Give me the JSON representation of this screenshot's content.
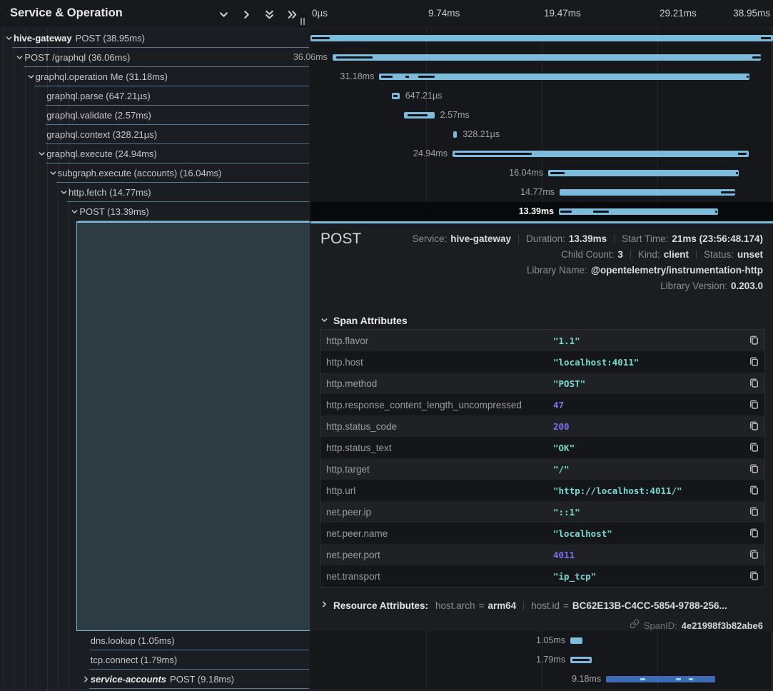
{
  "left_panel": {
    "title": "Service & Operation",
    "header_icons": [
      "chevron-down-icon",
      "chevron-right-icon",
      "chevrons-down-icon",
      "chevrons-right-icon"
    ]
  },
  "timeline": {
    "ticks": [
      "0µs",
      "9.74ms",
      "19.47ms",
      "29.21ms",
      "38.95ms"
    ],
    "total_ms": 38.95,
    "bar_color_light": "#7dbbdc",
    "bar_color_dark": "#3d6cb4"
  },
  "rows": [
    {
      "section": "top",
      "service": "hive-gateway",
      "italic": false,
      "label": "POST (38.95ms)",
      "depth": 0,
      "chevron": "down",
      "start_ms": 0,
      "dur_ms": 38.95,
      "bar_label": "",
      "label_side": "none",
      "color": "light",
      "selected": false,
      "marks": [
        [
          0.1,
          1.5
        ],
        [
          37.9,
          0.85
        ]
      ],
      "end_dot": false
    },
    {
      "section": "top",
      "service": null,
      "italic": false,
      "label": "POST /graphql (36.06ms)",
      "depth": 1,
      "chevron": "down",
      "start_ms": 1.85,
      "dur_ms": 36.06,
      "bar_label": "36.06ms",
      "label_side": "left",
      "color": "light",
      "selected": false,
      "marks": [
        [
          0.3,
          3.1
        ],
        [
          35.35,
          0.72
        ]
      ],
      "end_dot": false
    },
    {
      "section": "top",
      "service": null,
      "italic": false,
      "label": "graphql.operation Me (31.18ms)",
      "depth": 2,
      "chevron": "down",
      "start_ms": 5.79,
      "dur_ms": 31.18,
      "bar_label": "31.18ms",
      "label_side": "left",
      "color": "light",
      "selected": false,
      "marks": [
        [
          0.15,
          1.0
        ],
        [
          2.2,
          0.3
        ],
        [
          3.3,
          1.4
        ]
      ],
      "end_dot": true
    },
    {
      "section": "top",
      "service": null,
      "italic": false,
      "label": "graphql.parse (647.21µs)",
      "depth": 3,
      "chevron": "none",
      "start_ms": 6.85,
      "dur_ms": 0.64721,
      "bar_label": "647.21µs",
      "label_side": "right",
      "color": "light",
      "selected": false,
      "marks": [
        [
          0.12,
          0.35
        ]
      ],
      "end_dot": false
    },
    {
      "section": "top",
      "service": null,
      "italic": false,
      "label": "graphql.validate (2.57ms)",
      "depth": 3,
      "chevron": "none",
      "start_ms": 7.87,
      "dur_ms": 2.57,
      "bar_label": "2.57ms",
      "label_side": "right",
      "color": "light",
      "selected": false,
      "marks": [
        [
          0.3,
          1.7
        ]
      ],
      "end_dot": false
    },
    {
      "section": "top",
      "service": null,
      "italic": false,
      "label": "graphql.context (328.21µs)",
      "depth": 3,
      "chevron": "none",
      "start_ms": 12.02,
      "dur_ms": 0.32821,
      "bar_label": "328.21µs",
      "label_side": "right",
      "color": "light",
      "selected": false,
      "marks": [],
      "end_dot": false
    },
    {
      "section": "top",
      "service": null,
      "italic": false,
      "label": "graphql.execute (24.94ms)",
      "depth": 3,
      "chevron": "down",
      "start_ms": 11.96,
      "dur_ms": 24.94,
      "bar_label": "24.94ms",
      "label_side": "left",
      "color": "light",
      "selected": false,
      "marks": [
        [
          0.2,
          6.5
        ],
        [
          24.05,
          0.7
        ]
      ],
      "end_dot": false
    },
    {
      "section": "top",
      "service": null,
      "italic": false,
      "label": "subgraph.execute (accounts) (16.04ms)",
      "depth": 4,
      "chevron": "down",
      "start_ms": 20.02,
      "dur_ms": 16.04,
      "bar_label": "16.04ms",
      "label_side": "left",
      "color": "light",
      "selected": false,
      "marks": [
        [
          0.15,
          1.2
        ]
      ],
      "end_dot": true
    },
    {
      "section": "top",
      "service": null,
      "italic": false,
      "label": "http.fetch (14.77ms)",
      "depth": 5,
      "chevron": "down",
      "start_ms": 20.98,
      "dur_ms": 14.77,
      "bar_label": "14.77ms",
      "label_side": "left",
      "color": "light",
      "selected": false,
      "marks": [
        [
          13.6,
          1.2
        ]
      ],
      "end_dot": false
    },
    {
      "section": "top",
      "service": null,
      "italic": false,
      "label": "POST (13.39ms)",
      "depth": 6,
      "chevron": "down",
      "start_ms": 20.92,
      "dur_ms": 13.39,
      "bar_label": "13.39ms",
      "label_side": "left",
      "color": "light",
      "selected": true,
      "marks": [
        [
          0.1,
          1.0
        ],
        [
          2.9,
          1.3
        ]
      ],
      "end_dot": true
    },
    {
      "section": "bottom",
      "service": null,
      "italic": false,
      "label": "dns.lookup (1.05ms)",
      "depth": 7,
      "chevron": "none",
      "start_ms": 21.88,
      "dur_ms": 1.05,
      "bar_label": "1.05ms",
      "label_side": "left",
      "color": "light",
      "selected": false,
      "marks": [],
      "end_dot": false
    },
    {
      "section": "bottom",
      "service": null,
      "italic": false,
      "label": "tcp.connect (1.79ms)",
      "depth": 7,
      "chevron": "none",
      "start_ms": 21.88,
      "dur_ms": 1.79,
      "bar_label": "1.79ms",
      "label_side": "left",
      "color": "light",
      "selected": false,
      "marks": [
        [
          0.2,
          1.4
        ]
      ],
      "end_dot": false
    },
    {
      "section": "bottom",
      "service": "service-accounts",
      "italic": true,
      "label": "POST (9.18ms)",
      "depth": 7,
      "chevron": "right",
      "start_ms": 24.89,
      "dur_ms": 9.18,
      "bar_label": "9.18ms",
      "label_side": "left",
      "color": "dark",
      "selected": false,
      "marks": [
        [
          2.9,
          0.4
        ],
        [
          5.9,
          0.4
        ],
        [
          6.95,
          0.4
        ]
      ],
      "end_dot": false
    }
  ],
  "detail": {
    "title": "POST",
    "meta_lines": [
      [
        {
          "label": "Service:",
          "value": "hive-gateway"
        },
        {
          "label": "Duration:",
          "value": "13.39ms"
        },
        {
          "label": "Start Time:",
          "value": "21ms (23:56:48.174)"
        }
      ],
      [
        {
          "label": "Child Count:",
          "value": "3"
        },
        {
          "label": "Kind:",
          "value": "client"
        },
        {
          "label": "Status:",
          "value": "unset"
        }
      ],
      [
        {
          "label": "Library Name:",
          "value": "@opentelemetry/instrumentation-http"
        }
      ],
      [
        {
          "label": "Library Version:",
          "value": "0.203.0"
        }
      ]
    ],
    "attributes_title": "Span Attributes",
    "attributes": [
      {
        "key": "http.flavor",
        "value": "\"1.1\"",
        "type": "string"
      },
      {
        "key": "http.host",
        "value": "\"localhost:4011\"",
        "type": "string"
      },
      {
        "key": "http.method",
        "value": "\"POST\"",
        "type": "string"
      },
      {
        "key": "http.response_content_length_uncompressed",
        "value": "47",
        "type": "number"
      },
      {
        "key": "http.status_code",
        "value": "200",
        "type": "number"
      },
      {
        "key": "http.status_text",
        "value": "\"OK\"",
        "type": "string"
      },
      {
        "key": "http.target",
        "value": "\"/\"",
        "type": "string"
      },
      {
        "key": "http.url",
        "value": "\"http://localhost:4011/\"",
        "type": "string"
      },
      {
        "key": "net.peer.ip",
        "value": "\"::1\"",
        "type": "string"
      },
      {
        "key": "net.peer.name",
        "value": "\"localhost\"",
        "type": "string"
      },
      {
        "key": "net.peer.port",
        "value": "4011",
        "type": "number"
      },
      {
        "key": "net.transport",
        "value": "\"ip_tcp\"",
        "type": "string"
      }
    ],
    "resource": {
      "title": "Resource Attributes:",
      "pairs": [
        {
          "key": "host.arch",
          "value": "arm64"
        },
        {
          "key": "host.id",
          "value": "BC62E13B-C4CC-5854-9788-256..."
        }
      ]
    },
    "span_id": {
      "label": "SpanID:",
      "value": "4e21998f3b82abe6"
    }
  }
}
